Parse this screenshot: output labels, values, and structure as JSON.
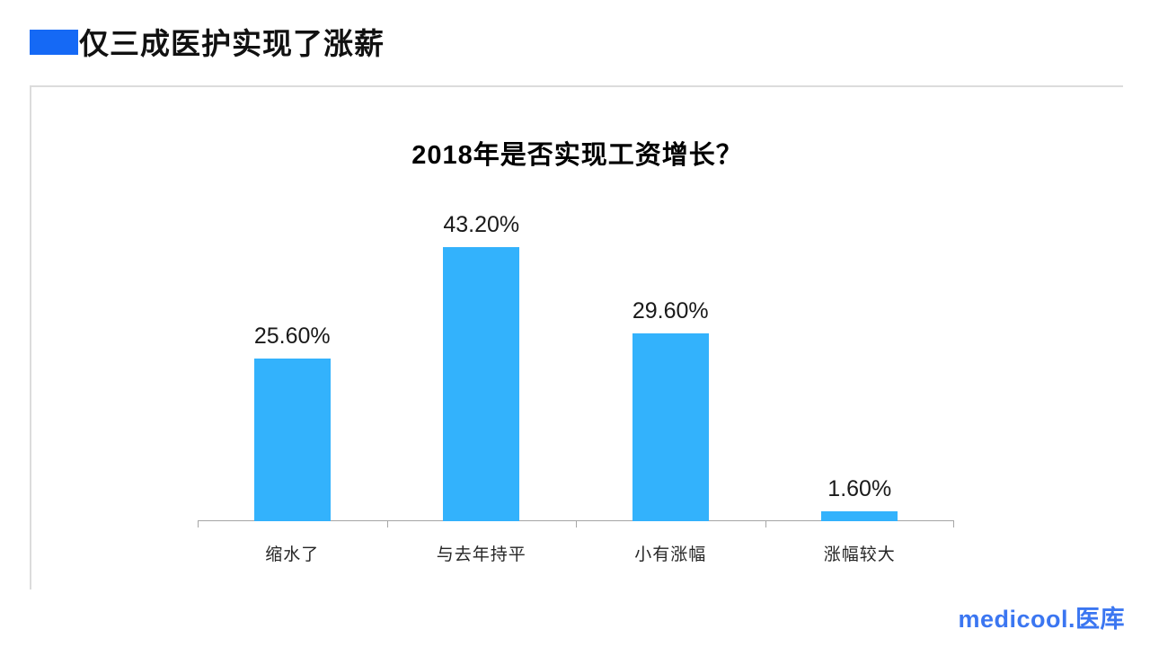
{
  "page": {
    "title": "仅三成医护实现了涨薪"
  },
  "colors": {
    "title_bullet": "#1569f5",
    "bar": "#33b2fc",
    "axis": "#a6a6a6",
    "logo": "#3b76f1",
    "panel_border": "#dcdcdc"
  },
  "chart_data": {
    "type": "bar",
    "title": "2018年是否实现工资增长？",
    "categories": [
      "缩水了",
      "与去年持平",
      "小有涨幅",
      "涨幅较大"
    ],
    "values": [
      25.6,
      43.2,
      29.6,
      1.6
    ],
    "value_labels": [
      "25.60%",
      "43.20%",
      "29.60%",
      "1.60%"
    ],
    "xlabel": "",
    "ylabel": "",
    "ylim": [
      0,
      50
    ],
    "grid": false,
    "legend": "none",
    "bar_color": "#33b2fc",
    "value_labels_position": "above-bars"
  },
  "footer": {
    "logo_text": "medicool.医库"
  }
}
